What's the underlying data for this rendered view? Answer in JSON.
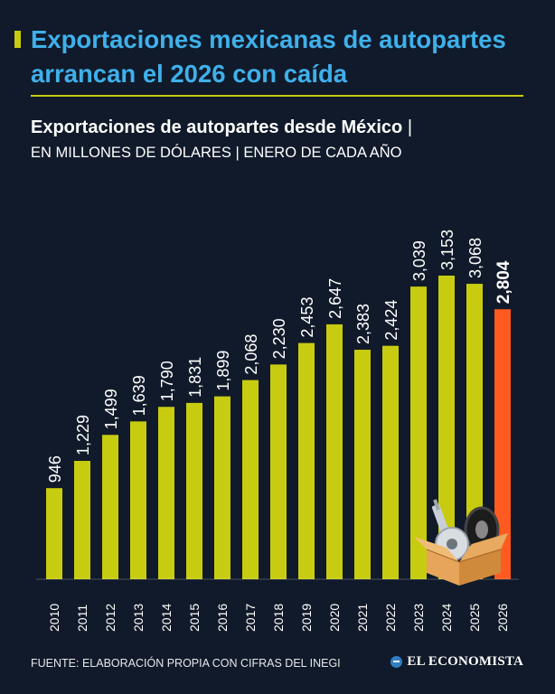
{
  "header": {
    "title": "Exportaciones mexicanas de autopartes arrancan el 2026 con caída",
    "subtitle_bold": "Exportaciones de autopartes desde México",
    "subtitle_sep": "|",
    "subtitle_units": "EN MILLONES DE DÓLARES | ENERO DE CADA AÑO"
  },
  "colors": {
    "background": "#101a2a",
    "bar": "#c8cc10",
    "bar_highlight": "#ff5a1f",
    "title": "#3fb0ea",
    "text": "#ffffff"
  },
  "chart_data": {
    "type": "bar",
    "categories": [
      "2010",
      "2011",
      "2012",
      "2013",
      "2014",
      "2015",
      "2016",
      "2017",
      "2018",
      "2019",
      "2020",
      "2021",
      "2022",
      "2023",
      "2024",
      "2025",
      "2026"
    ],
    "values": [
      946,
      1229,
      1499,
      1639,
      1790,
      1831,
      1899,
      2068,
      2230,
      2453,
      2647,
      2383,
      2424,
      3039,
      3153,
      3068,
      2804
    ],
    "labels": [
      "946",
      "1,229",
      "1,499",
      "1,639",
      "1,790",
      "1,831",
      "1,899",
      "2,068",
      "2,230",
      "2,453",
      "2,647",
      "2,383",
      "2,424",
      "3,039",
      "3,153",
      "3,068",
      "2,804"
    ],
    "highlight_index": 16,
    "ylim": [
      0,
      3153
    ],
    "grid": false,
    "legend": "none",
    "xlabel": "",
    "ylabel": ""
  },
  "footer": {
    "source": "FUENTE: ELABORACIÓN PROPIA CON CIFRAS DEL INEGI",
    "brand": "EL ECONOMISTA",
    "box_icon": "parts-box-icon"
  }
}
